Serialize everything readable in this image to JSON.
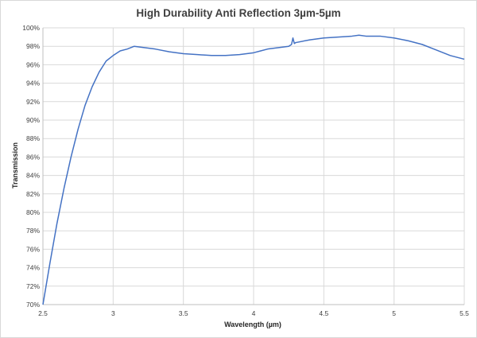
{
  "chart_data": {
    "type": "line",
    "title": "High Durability Anti Reflection 3µm-5µm",
    "xlabel": "Wavelength (µm)",
    "ylabel": "Transmission",
    "xlim": [
      2.5,
      5.5
    ],
    "ylim": [
      70,
      100
    ],
    "x_ticks": [
      "2.5",
      "3",
      "3.5",
      "4",
      "4.5",
      "5",
      "5.5"
    ],
    "y_ticks": [
      "70%",
      "72%",
      "74%",
      "76%",
      "78%",
      "80%",
      "82%",
      "84%",
      "86%",
      "88%",
      "90%",
      "92%",
      "94%",
      "96%",
      "98%",
      "100%"
    ],
    "grid": true,
    "legend": "none",
    "line_color": "#4472c4",
    "series": [
      {
        "x": [
          2.5,
          2.55,
          2.6,
          2.65,
          2.7,
          2.75,
          2.8,
          2.85,
          2.9,
          2.95,
          3.0,
          3.05,
          3.1,
          3.15,
          3.2,
          3.3,
          3.4,
          3.5,
          3.6,
          3.7,
          3.8,
          3.9,
          4.0,
          4.05,
          4.1,
          4.15,
          4.2,
          4.25,
          4.27,
          4.28,
          4.29,
          4.3,
          4.4,
          4.5,
          4.6,
          4.7,
          4.75,
          4.8,
          4.9,
          5.0,
          5.1,
          5.2,
          5.3,
          5.4,
          5.5
        ],
        "y": [
          70.0,
          74.5,
          78.8,
          82.6,
          86.0,
          89.0,
          91.6,
          93.6,
          95.2,
          96.4,
          97.0,
          97.5,
          97.7,
          98.0,
          97.9,
          97.7,
          97.4,
          97.2,
          97.1,
          97.0,
          97.0,
          97.1,
          97.3,
          97.5,
          97.7,
          97.8,
          97.9,
          98.0,
          98.2,
          98.9,
          98.3,
          98.4,
          98.7,
          98.9,
          99.0,
          99.1,
          99.2,
          99.1,
          99.1,
          98.9,
          98.6,
          98.2,
          97.6,
          97.0,
          96.6
        ]
      }
    ]
  }
}
